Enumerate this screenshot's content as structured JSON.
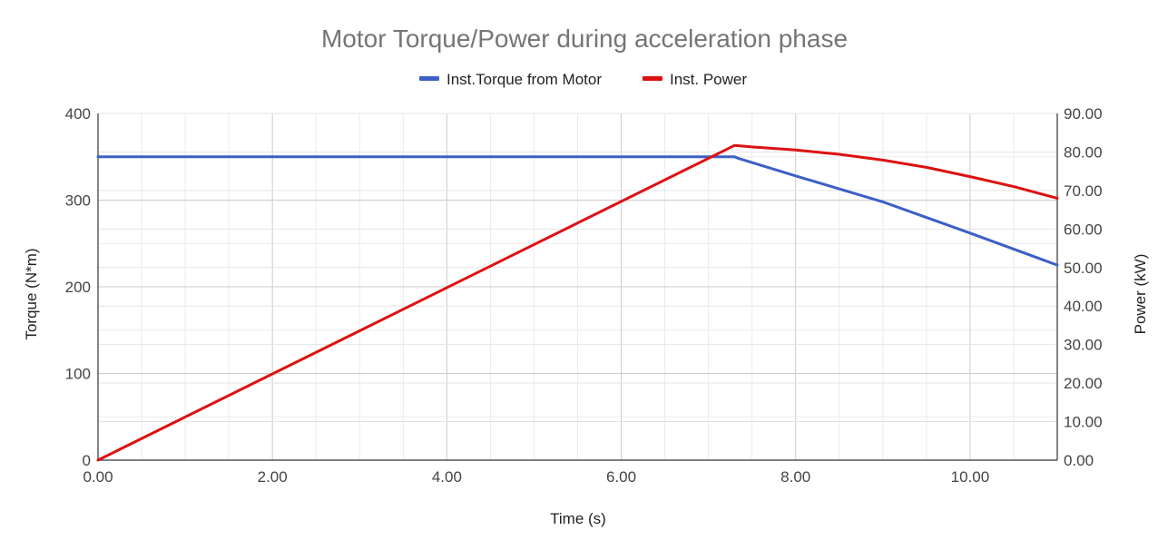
{
  "chart_data": {
    "type": "line",
    "title": "Motor Torque/Power during acceleration phase",
    "xlabel": "Time (s)",
    "ylabel_left": "Torque (N*m)",
    "ylabel_right": "Power (kW)",
    "xlim": [
      0,
      11
    ],
    "ylim_left": [
      0,
      400
    ],
    "ylim_right": [
      0,
      90
    ],
    "x_ticks": [
      0,
      2,
      4,
      6,
      8,
      10
    ],
    "x_tick_labels": [
      "0.00",
      "2.00",
      "4.00",
      "6.00",
      "8.00",
      "10.00"
    ],
    "y_left_ticks": [
      0,
      100,
      200,
      300,
      400
    ],
    "y_left_tick_labels": [
      "0",
      "100",
      "200",
      "300",
      "400"
    ],
    "y_right_ticks": [
      0,
      10,
      20,
      30,
      40,
      50,
      60,
      70,
      80,
      90
    ],
    "y_right_tick_labels": [
      "0.00",
      "10.00",
      "20.00",
      "30.00",
      "40.00",
      "50.00",
      "60.00",
      "70.00",
      "80.00",
      "90.00"
    ],
    "grid": true,
    "legend_position": "top",
    "series": [
      {
        "name": "Inst.Torque from Motor",
        "axis": "left",
        "color": "#3c5fc7",
        "x": [
          0,
          7.3,
          7.35,
          8,
          9,
          10,
          11
        ],
        "y": [
          350,
          350,
          348,
          328,
          298,
          262,
          225
        ]
      },
      {
        "name": "Inst. Power",
        "axis": "right",
        "color": "#dd1111",
        "x": [
          0,
          7.3,
          7.5,
          8,
          8.5,
          9,
          9.5,
          10,
          10.5,
          11
        ],
        "y": [
          0,
          81.7,
          81.3,
          80.5,
          79.4,
          77.9,
          76,
          73.6,
          71,
          68
        ]
      }
    ]
  }
}
